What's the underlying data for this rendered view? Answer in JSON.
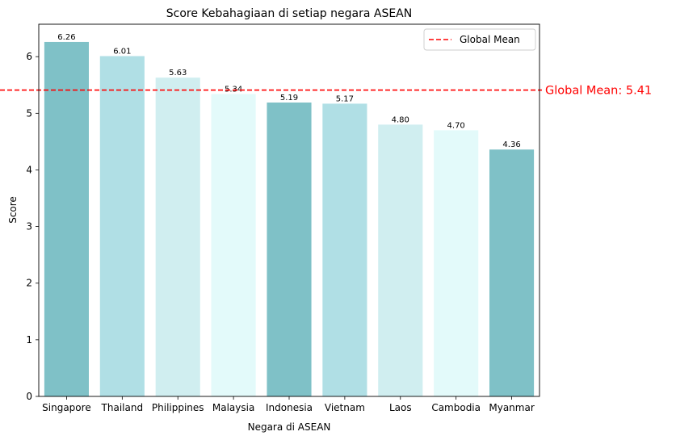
{
  "chart_data": {
    "type": "bar",
    "title": "Score Kebahagiaan di setiap negara ASEAN",
    "xlabel": "Negara di ASEAN",
    "ylabel": "Score",
    "ylim": [
      0,
      6.573
    ],
    "yticks": [
      "0",
      "1",
      "2",
      "3",
      "4",
      "5",
      "6"
    ],
    "grid": false,
    "categories": [
      "Singapore",
      "Thailand",
      "Philippines",
      "Malaysia",
      "Indonesia",
      "Vietnam",
      "Laos",
      "Cambodia",
      "Myanmar"
    ],
    "values": [
      6.26,
      6.01,
      5.63,
      5.34,
      5.19,
      5.17,
      4.8,
      4.7,
      4.36
    ],
    "data_labels": [
      "6.26",
      "6.01",
      "5.63",
      "5.34",
      "5.19",
      "5.17",
      "4.80",
      "4.70",
      "4.36"
    ],
    "bar_colors": [
      "#7fc1c7",
      "#b0dfe5",
      "#d0eef0",
      "#e3fafa",
      "#7fc1c7",
      "#b0dfe5",
      "#d0eef0",
      "#e3fafa",
      "#7fc1c7"
    ],
    "reference_line": {
      "value": 5.41,
      "color": "#ff0000",
      "style": "dashed",
      "legend_label": "Global Mean",
      "annotation": "Global Mean: 5.41"
    },
    "legend_placement": "top-right"
  }
}
